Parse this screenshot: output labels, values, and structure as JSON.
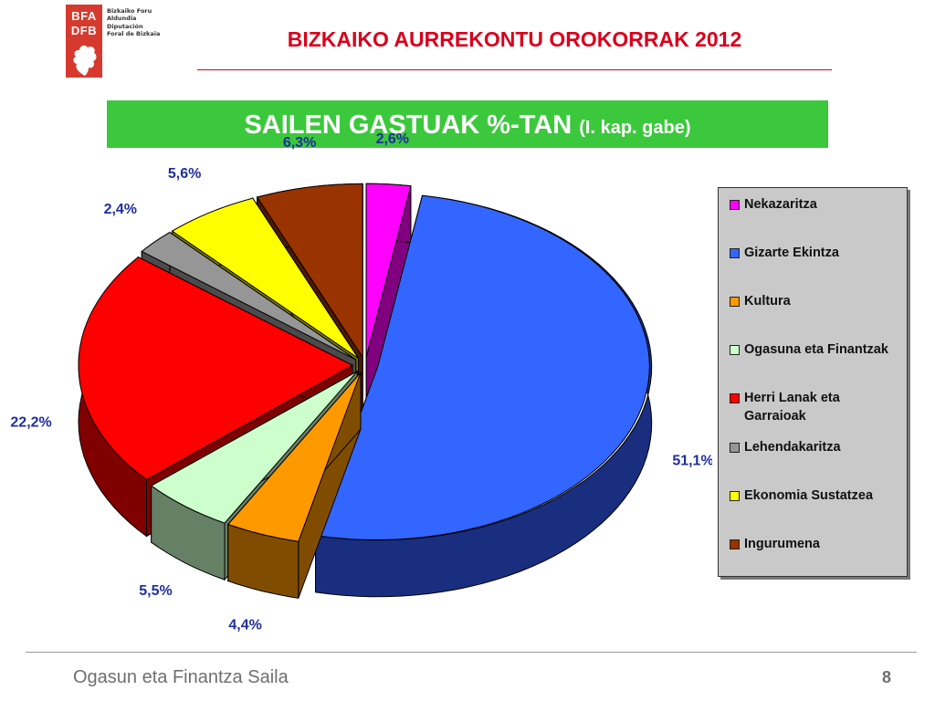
{
  "header": {
    "logo_line1": "BFA",
    "logo_line2": "DFB",
    "org_line1": "Bizkaiko Foru",
    "org_line2": "Aldundia",
    "org_line3": "Diputación",
    "org_line4": "Foral de Bizkaia",
    "title": "BIZKAIKO AURREKONTU OROKORRAK 2012"
  },
  "banner": {
    "title": "SAILEN GASTUAK %-TAN",
    "subtitle": "(I. kap. gabe)"
  },
  "colors": {
    "header_red": "#d8001c",
    "banner_green": "#3cc83c",
    "label_blue": "#1f2f9e",
    "legend_bg": "#c9c9c9"
  },
  "chart_data": {
    "type": "pie",
    "title": "SAILEN GASTUAK %-TAN (I. kap. gabe)",
    "legend_position": "right",
    "slices": [
      {
        "name": "Nekazaritza",
        "value": 2.6,
        "label": "2,6%",
        "color": "#ff00ff",
        "dark": "#800080"
      },
      {
        "name": "Gizarte Ekintza",
        "value": 51.1,
        "label": "51,1%",
        "color": "#3366ff",
        "dark": "#1a2e80"
      },
      {
        "name": "Kultura",
        "value": 4.4,
        "label": "4,4%",
        "color": "#ff9900",
        "dark": "#804d00"
      },
      {
        "name": "Ogasuna eta Finantzak",
        "value": 5.5,
        "label": "5,5%",
        "color": "#ccffcc",
        "dark": "#668066"
      },
      {
        "name": "Herri Lanak eta Garraioak",
        "value": 22.2,
        "label": "22,2%",
        "color": "#ff0000",
        "dark": "#800000"
      },
      {
        "name": "Lehendakaritza",
        "value": 2.4,
        "label": "2,4%",
        "color": "#969696",
        "dark": "#4b4b4b"
      },
      {
        "name": "Ekonomia Sustatzea",
        "value": 5.6,
        "label": "5,6%",
        "color": "#ffff00",
        "dark": "#808000"
      },
      {
        "name": "Ingurumena",
        "value": 6.3,
        "label": "6,3%",
        "color": "#993300",
        "dark": "#4d1a00"
      }
    ]
  },
  "footer": {
    "text": "Ogasun eta Finantza Saila",
    "page": "8"
  }
}
